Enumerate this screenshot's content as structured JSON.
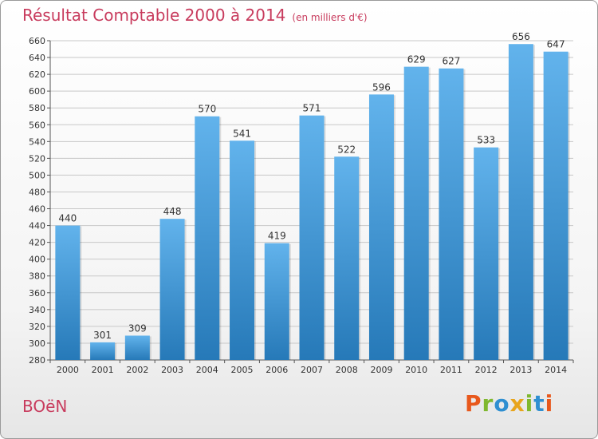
{
  "page": {
    "title": "Résultat Comptable 2000 à 2014",
    "subtitle": "(en milliers d'€)",
    "commune": "BOëN",
    "logo": "Proxiti"
  },
  "colors": {
    "title": "#c83b5d",
    "bar_top": "#62b3ec",
    "bar_bottom": "#2679b8",
    "grid": "#c8c8c8",
    "logo_letters": [
      "#e8581c",
      "#7fb82e",
      "#2f8fd1",
      "#e8a51c",
      "#7fb82e",
      "#2f8fd1",
      "#e8581c"
    ]
  },
  "chart_data": {
    "type": "bar",
    "title": "Résultat Comptable 2000 à 2014",
    "subtitle": "(en milliers d'€)",
    "xlabel": "",
    "ylabel": "",
    "categories": [
      "2000",
      "2001",
      "2002",
      "2003",
      "2004",
      "2005",
      "2006",
      "2007",
      "2008",
      "2009",
      "2010",
      "2011",
      "2012",
      "2013",
      "2014"
    ],
    "values": [
      440,
      301,
      309,
      448,
      570,
      541,
      419,
      571,
      522,
      596,
      629,
      627,
      533,
      656,
      647
    ],
    "ylim": [
      280,
      660
    ],
    "yticks": [
      280,
      300,
      320,
      340,
      360,
      380,
      400,
      420,
      440,
      460,
      480,
      500,
      520,
      540,
      560,
      580,
      600,
      620,
      640,
      660
    ],
    "grid": true,
    "legend": "none"
  }
}
